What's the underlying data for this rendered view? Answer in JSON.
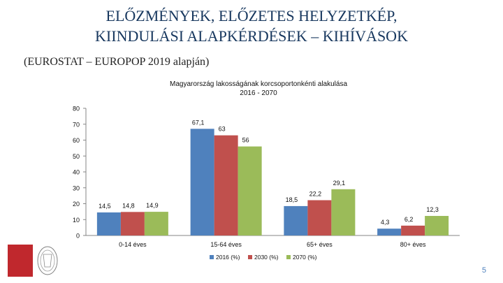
{
  "slide": {
    "title_line1": "ELŐZMÉNYEK, ELŐZETES HELYZETKÉP,",
    "title_line2": "KIINDULÁSI ALAPKÉRDÉSEK – KIHÍVÁSOK",
    "subtitle": "(EUROSTAT – EUROPOP 2019 alapján)",
    "page_number": "5"
  },
  "colors": {
    "title": "#17375e",
    "series": [
      "#4f81bd",
      "#c0504d",
      "#9bbb59"
    ],
    "logo": "#c0282d"
  },
  "icons": {
    "logo": "institution-logo",
    "seal": "university-seal"
  },
  "chart_data": {
    "type": "bar",
    "title_line1": "Magyarország lakosságának korcsoportonkénti alakulása",
    "title_line2": "2016 - 2070",
    "categories": [
      "0-14 éves",
      "15-64 éves",
      "65+ éves",
      "80+ éves"
    ],
    "series": [
      {
        "name": "2016 (%)",
        "values": [
          14.5,
          67.1,
          18.5,
          4.3
        ],
        "labels": [
          "14,5",
          "67,1",
          "18,5",
          "4,3"
        ]
      },
      {
        "name": "2030 (%)",
        "values": [
          14.8,
          63,
          22.2,
          6.2
        ],
        "labels": [
          "14,8",
          "63",
          "22,2",
          "6,2"
        ]
      },
      {
        "name": "2070 (%)",
        "values": [
          14.9,
          56,
          29.1,
          12.3
        ],
        "labels": [
          "14,9",
          "56",
          "29,1",
          "12,3"
        ]
      }
    ],
    "ylim": [
      0,
      80
    ],
    "yticks": [
      "0",
      "10",
      "20",
      "30",
      "40",
      "50",
      "60",
      "70",
      "80"
    ],
    "grid": false,
    "legend": "bottom"
  }
}
